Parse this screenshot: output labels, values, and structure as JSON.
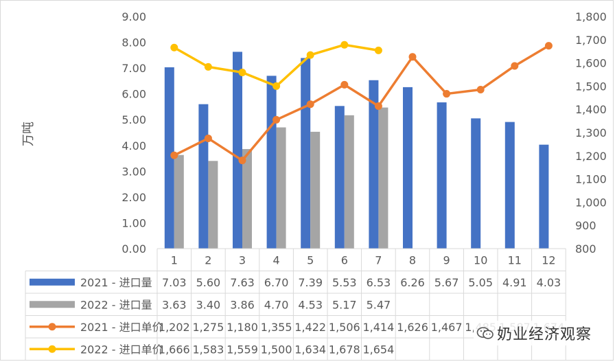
{
  "chart_data": {
    "type": "bar+line",
    "ylabel_left": "万吨",
    "ylim_left": [
      0,
      9
    ],
    "ylim_right": [
      800,
      1800
    ],
    "left_ticks": [
      "0.00",
      "1.00",
      "2.00",
      "3.00",
      "4.00",
      "5.00",
      "6.00",
      "7.00",
      "8.00",
      "9.00"
    ],
    "right_ticks": [
      "800",
      "900",
      "1,000",
      "1,100",
      "1,200",
      "1,300",
      "1,400",
      "1,500",
      "1,600",
      "1,700",
      "1,800"
    ],
    "categories": [
      "1",
      "2",
      "3",
      "4",
      "5",
      "6",
      "7",
      "8",
      "9",
      "10",
      "11",
      "12"
    ],
    "series": [
      {
        "name": "2021 - 进口量",
        "kind": "bar",
        "axis": "left",
        "color": "#4472C4",
        "values": [
          7.03,
          5.6,
          7.63,
          6.7,
          7.39,
          5.53,
          6.53,
          6.26,
          5.67,
          5.05,
          4.91,
          4.03
        ],
        "labels": [
          "7.03",
          "5.60",
          "7.63",
          "6.70",
          "7.39",
          "5.53",
          "6.53",
          "6.26",
          "5.67",
          "5.05",
          "4.91",
          "4.03"
        ]
      },
      {
        "name": "2022 - 进口量",
        "kind": "bar",
        "axis": "left",
        "color": "#A5A5A5",
        "values": [
          3.63,
          3.4,
          3.86,
          4.7,
          4.53,
          5.17,
          5.47,
          null,
          null,
          null,
          null,
          null
        ],
        "labels": [
          "3.63",
          "3.40",
          "3.86",
          "4.70",
          "4.53",
          "5.17",
          "5.47",
          "",
          "",
          "",
          "",
          ""
        ]
      },
      {
        "name": "2021 - 进口单价",
        "kind": "line",
        "axis": "right",
        "color": "#ED7D31",
        "values": [
          1202,
          1275,
          1180,
          1355,
          1422,
          1506,
          1414,
          1626,
          1467,
          1485,
          1587,
          1674
        ],
        "labels": [
          "1,202",
          "1,275",
          "1,180",
          "1,355",
          "1,422",
          "1,506",
          "1,414",
          "1,626",
          "1,467",
          "1,485",
          "1,587",
          "1,674"
        ]
      },
      {
        "name": "2022 - 进口单价",
        "kind": "line",
        "axis": "right",
        "color": "#FFC000",
        "values": [
          1666,
          1583,
          1559,
          1500,
          1634,
          1678,
          1654,
          null,
          null,
          null,
          null,
          null
        ],
        "labels": [
          "1,666",
          "1,583",
          "1,559",
          "1,500",
          "1,634",
          "1,678",
          "1,654",
          "",
          "",
          "",
          "",
          ""
        ]
      }
    ],
    "grid": false,
    "legend": "data-table"
  },
  "watermark": {
    "text": "奶业经济观察",
    "icon": "wechat-icon"
  }
}
